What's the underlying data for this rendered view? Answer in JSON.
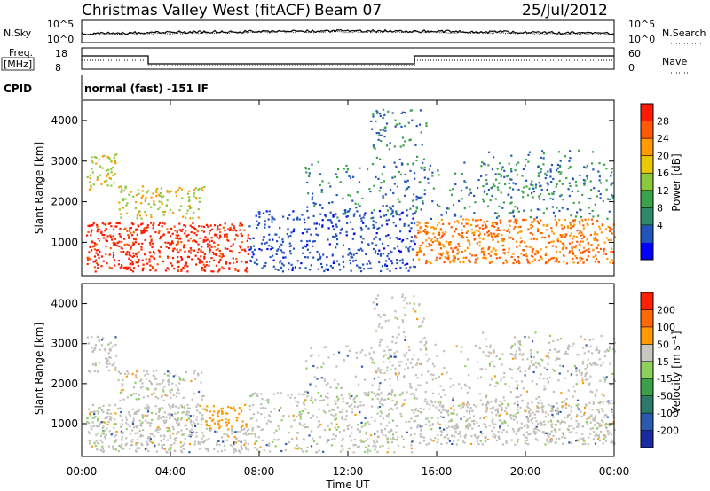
{
  "header": {
    "station": "Christmas Valley West (fitACF)",
    "beam": "Beam 07",
    "date": "25/Jul/2012"
  },
  "noise_panel": {
    "left_label": "N.Sky",
    "left_ticks": [
      "10^5",
      "10^0"
    ],
    "right_ticks": [
      "10^5",
      "10^0"
    ],
    "right_label": "N.Search"
  },
  "freq_panel": {
    "left_label_1": "Freq.",
    "left_label_2": "[MHz]",
    "left_ticks": [
      "18",
      "8"
    ],
    "right_ticks": [
      "60",
      "0"
    ],
    "right_label": "Nave",
    "frequency_steps": [
      {
        "from_hour": 0,
        "to_hour": 3.0,
        "level": "high"
      },
      {
        "from_hour": 3.0,
        "to_hour": 15.0,
        "level": "low"
      },
      {
        "from_hour": 15.0,
        "to_hour": 24.0,
        "level": "high"
      }
    ]
  },
  "cpid": {
    "label": "CPID",
    "value": "normal (fast) -151 IF"
  },
  "chart_data": [
    {
      "type": "heatmap",
      "name": "power-panel",
      "ylabel": "Slant Range [km]",
      "xlabel": "",
      "y_ticks": [
        "4000",
        "3000",
        "2000",
        "1000"
      ],
      "y_tick_values": [
        4000,
        3000,
        2000,
        1000
      ],
      "ylim": [
        180,
        4500
      ],
      "xlim_hours": [
        0,
        24
      ],
      "colorbar_title": "Power [dB]",
      "colorbar_labels": [
        "28",
        "24",
        "20",
        "16",
        "12",
        "8",
        "4"
      ],
      "colorbar_colors": [
        "#0000ff",
        "#2255bb",
        "#2f8a6a",
        "#39a24a",
        "#8cc83c",
        "#e8c800",
        "#ff9a00",
        "#ff5a00",
        "#ff1a00"
      ]
    },
    {
      "type": "heatmap",
      "name": "velocity-panel",
      "ylabel": "Slant Range [km]",
      "xlabel": "Time UT",
      "x_ticks": [
        "00:00",
        "04:00",
        "08:00",
        "12:00",
        "16:00",
        "20:00",
        "00:00"
      ],
      "x_tick_hours": [
        0,
        4,
        8,
        12,
        16,
        20,
        24
      ],
      "y_ticks": [
        "4000",
        "3000",
        "2000",
        "1000"
      ],
      "y_tick_values": [
        4000,
        3000,
        2000,
        1000
      ],
      "ylim": [
        180,
        4500
      ],
      "colorbar_title": "Velocity [m s⁻¹]",
      "colorbar_labels": [
        "200",
        "100",
        "50",
        "15",
        "-15",
        "-50",
        "-100",
        "-200"
      ],
      "colorbar_colors": [
        "#1a2aa0",
        "#2a5ab0",
        "#2e7a6a",
        "#3aa04a",
        "#8ed060",
        "#c8c8c0",
        "#ff9a00",
        "#ff6a00",
        "#ff2000"
      ]
    }
  ],
  "colors": {
    "ground_scatter": "#c0bfb8",
    "axis": "#000000"
  }
}
